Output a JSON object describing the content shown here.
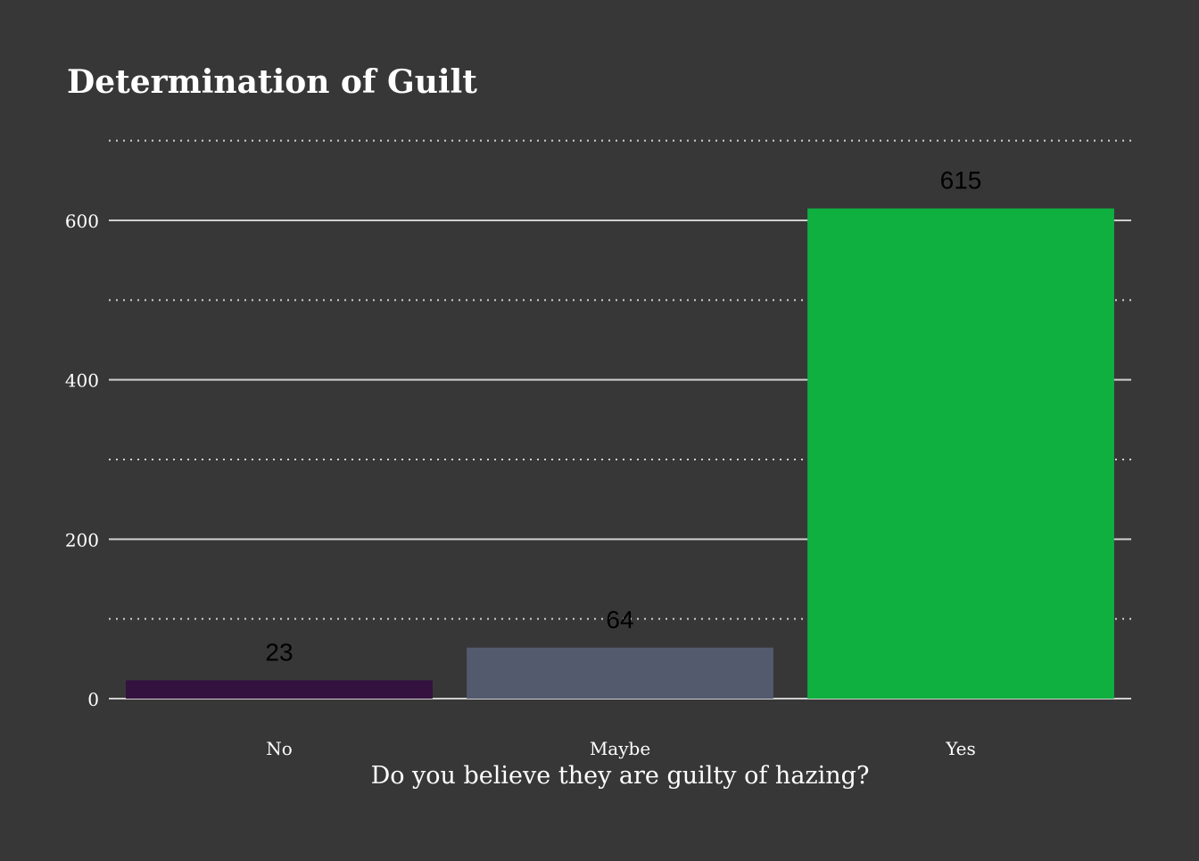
{
  "chart_data": {
    "type": "bar",
    "title": "Determination of Guilt",
    "xlabel": "Do you believe they are guilty of hazing?",
    "ylabel": "",
    "categories": [
      "No",
      "Maybe",
      "Yes"
    ],
    "values": [
      23,
      64,
      615
    ],
    "data_labels": [
      "23",
      "64",
      "615"
    ],
    "colors": [
      "#34123f",
      "#545a6d",
      "#10b040"
    ],
    "ylim": [
      0,
      700
    ],
    "yticks": [
      0,
      200,
      400,
      600
    ],
    "ytick_labels": [
      "0",
      "200",
      "400",
      "600"
    ],
    "minor_gridlines": [
      100,
      300,
      500,
      700
    ],
    "grid": true,
    "legend": "none",
    "background": "#373737",
    "grid_color": "#cfcfcf"
  }
}
